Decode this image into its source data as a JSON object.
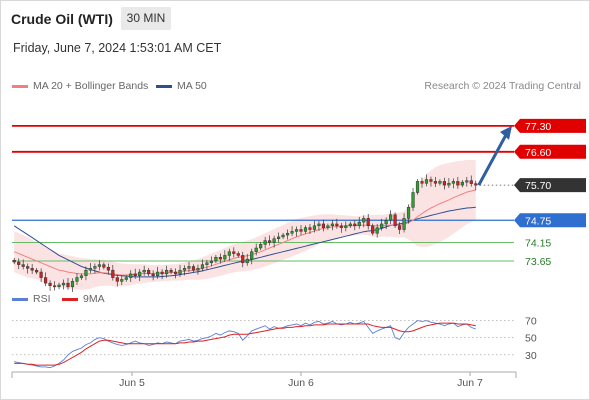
{
  "header": {
    "title": "Crude Oil (WTI)",
    "timeframe": "30 MIN",
    "datetime": "Friday, June 7, 2024 1:53:01 AM CET"
  },
  "legend": {
    "ma20_label": "MA 20 + Bollinger Bands",
    "ma50_label": "MA 50",
    "credit": "Research © 2024 Trading Central"
  },
  "rsi_legend": {
    "rsi_label": "RSI",
    "ma_label": "9MA"
  },
  "colors": {
    "resistance": "#e00000",
    "support_pivot": "#2f6fd0",
    "support": "#66bb66",
    "candle_up": "#2e9e2e",
    "candle_down": "#cc2222",
    "bollinger_fill": "#fbdada",
    "ma20": "#f08080",
    "ma50": "#2f4f8f",
    "rsi": "#5b7fd6",
    "rsi_ma": "#dd2222",
    "arrow": "#2f5fa0",
    "last_price": "#333333"
  },
  "chart_data": [
    {
      "type": "candlestick",
      "x_ticks": [
        "Jun 5",
        "Jun 6",
        "Jun 7"
      ],
      "ylim": [
        73.0,
        78.0
      ],
      "price_levels": [
        {
          "label": "77.30",
          "value": 77.3,
          "kind": "resistance"
        },
        {
          "label": "76.60",
          "value": 76.6,
          "kind": "resistance"
        },
        {
          "label": "75.70",
          "value": 75.7,
          "kind": "last"
        },
        {
          "label": "74.75",
          "value": 74.75,
          "kind": "pivot"
        },
        {
          "label": "74.15",
          "value": 74.15,
          "kind": "support"
        },
        {
          "label": "73.65",
          "value": 73.65,
          "kind": "support"
        }
      ],
      "target_arrow": {
        "from": 75.7,
        "to": 77.3
      },
      "close": [
        73.62,
        73.55,
        73.5,
        73.45,
        73.4,
        73.35,
        73.2,
        73.05,
        72.98,
        72.95,
        73.0,
        73.05,
        72.95,
        73.1,
        73.2,
        73.25,
        73.4,
        73.45,
        73.5,
        73.55,
        73.48,
        73.4,
        73.2,
        73.1,
        73.15,
        73.2,
        73.3,
        73.25,
        73.35,
        73.4,
        73.3,
        73.25,
        73.35,
        73.3,
        73.4,
        73.35,
        73.3,
        73.4,
        73.45,
        73.5,
        73.4,
        73.45,
        73.55,
        73.6,
        73.65,
        73.75,
        73.7,
        73.8,
        73.9,
        73.85,
        73.8,
        73.6,
        73.7,
        73.9,
        74.0,
        74.1,
        74.2,
        74.15,
        74.25,
        74.3,
        74.35,
        74.4,
        74.45,
        74.5,
        74.45,
        74.55,
        74.5,
        74.6,
        74.65,
        74.55,
        74.6,
        74.65,
        74.6,
        74.55,
        74.6,
        74.65,
        74.6,
        74.7,
        74.8,
        74.6,
        74.4,
        74.55,
        74.65,
        74.75,
        74.9,
        74.6,
        74.5,
        74.8,
        75.1,
        75.5,
        75.8,
        75.75,
        75.85,
        75.8,
        75.75,
        75.8,
        75.7,
        75.75,
        75.8,
        75.7,
        75.78,
        75.82,
        75.74,
        75.7
      ],
      "ma20": [
        73.9,
        73.85,
        73.8,
        73.75,
        73.7,
        73.65,
        73.6,
        73.55,
        73.5,
        73.45,
        73.4,
        73.38,
        73.35,
        73.33,
        73.31,
        73.3,
        73.3,
        73.3,
        73.32,
        73.33,
        73.33,
        73.32,
        73.3,
        73.28,
        73.27,
        73.27,
        73.28,
        73.29,
        73.3,
        73.31,
        73.31,
        73.31,
        73.32,
        73.32,
        73.33,
        73.34,
        73.34,
        73.35,
        73.37,
        73.39,
        73.4,
        73.42,
        73.45,
        73.48,
        73.52,
        73.56,
        73.6,
        73.64,
        73.68,
        73.72,
        73.75,
        73.77,
        73.79,
        73.82,
        73.86,
        73.9,
        73.95,
        74.0,
        74.05,
        74.1,
        74.15,
        74.2,
        74.25,
        74.3,
        74.34,
        74.38,
        74.42,
        74.46,
        74.5,
        74.53,
        74.55,
        74.57,
        74.58,
        74.59,
        74.6,
        74.6,
        74.6,
        74.61,
        74.62,
        74.62,
        74.6,
        74.6,
        74.6,
        74.61,
        74.62,
        74.62,
        74.62,
        74.64,
        74.68,
        74.75,
        74.85,
        74.93,
        75.01,
        75.08,
        75.14,
        75.2,
        75.25,
        75.3,
        75.36,
        75.41,
        75.46,
        75.51,
        75.54,
        75.57
      ],
      "ma50": [
        74.6,
        74.52,
        74.44,
        74.36,
        74.28,
        74.2,
        74.12,
        74.04,
        73.96,
        73.88,
        73.8,
        73.74,
        73.68,
        73.62,
        73.56,
        73.5,
        73.46,
        73.42,
        73.38,
        73.35,
        73.32,
        73.3,
        73.28,
        73.26,
        73.25,
        73.24,
        73.23,
        73.22,
        73.22,
        73.22,
        73.22,
        73.22,
        73.22,
        73.23,
        73.24,
        73.25,
        73.26,
        73.28,
        73.3,
        73.32,
        73.34,
        73.36,
        73.38,
        73.41,
        73.44,
        73.47,
        73.5,
        73.53,
        73.56,
        73.59,
        73.62,
        73.64,
        73.66,
        73.69,
        73.72,
        73.75,
        73.78,
        73.81,
        73.84,
        73.87,
        73.9,
        73.93,
        73.96,
        73.99,
        74.02,
        74.05,
        74.08,
        74.11,
        74.14,
        74.17,
        74.2,
        74.23,
        74.26,
        74.29,
        74.32,
        74.35,
        74.38,
        74.41,
        74.44,
        74.46,
        74.47,
        74.5,
        74.53,
        74.57,
        74.61,
        74.63,
        74.65,
        74.68,
        74.71,
        74.75,
        74.79,
        74.82,
        74.85,
        74.88,
        74.91,
        74.94,
        74.97,
        75.0,
        75.02,
        75.04,
        75.06,
        75.08,
        75.09,
        75.1
      ],
      "bb_width": [
        0.55,
        0.55,
        0.55,
        0.55,
        0.52,
        0.5,
        0.5,
        0.5,
        0.48,
        0.46,
        0.45,
        0.45,
        0.45,
        0.45,
        0.44,
        0.43,
        0.42,
        0.4,
        0.38,
        0.36,
        0.35,
        0.34,
        0.33,
        0.32,
        0.31,
        0.3,
        0.28,
        0.27,
        0.26,
        0.25,
        0.24,
        0.23,
        0.23,
        0.22,
        0.22,
        0.22,
        0.22,
        0.23,
        0.24,
        0.25,
        0.26,
        0.28,
        0.3,
        0.32,
        0.33,
        0.34,
        0.35,
        0.36,
        0.37,
        0.38,
        0.39,
        0.4,
        0.41,
        0.42,
        0.43,
        0.44,
        0.45,
        0.46,
        0.46,
        0.47,
        0.47,
        0.48,
        0.48,
        0.48,
        0.47,
        0.46,
        0.44,
        0.42,
        0.4,
        0.38,
        0.36,
        0.34,
        0.32,
        0.3,
        0.28,
        0.27,
        0.26,
        0.25,
        0.26,
        0.27,
        0.3,
        0.3,
        0.3,
        0.3,
        0.32,
        0.33,
        0.34,
        0.35,
        0.45,
        0.6,
        0.8,
        0.9,
        0.98,
        1.02,
        1.04,
        1.04,
        1.02,
        1.0,
        0.97,
        0.94,
        0.9,
        0.87,
        0.84,
        0.8
      ]
    },
    {
      "type": "line",
      "name": "RSI",
      "y_ticks": [
        30,
        50,
        70
      ],
      "ylim": [
        10,
        80
      ],
      "rsi": [
        22,
        21,
        20,
        19,
        18,
        17,
        16,
        16,
        15,
        17,
        20,
        24,
        30,
        34,
        36,
        38,
        42,
        44,
        48,
        50,
        49,
        46,
        44,
        42,
        41,
        42,
        44,
        46,
        44,
        43,
        41,
        42,
        44,
        43,
        45,
        44,
        43,
        46,
        47,
        48,
        46,
        47,
        49,
        50,
        52,
        55,
        53,
        56,
        58,
        57,
        55,
        47,
        52,
        58,
        60,
        62,
        64,
        60,
        63,
        61,
        62,
        64,
        65,
        66,
        64,
        67,
        65,
        68,
        69,
        66,
        67,
        69,
        66,
        65,
        66,
        68,
        66,
        67,
        69,
        62,
        55,
        58,
        60,
        62,
        64,
        50,
        48,
        56,
        62,
        66,
        70,
        69,
        70,
        68,
        67,
        66,
        64,
        66,
        67,
        63,
        65,
        66,
        62,
        60
      ],
      "rsi_ma": [
        20,
        20,
        20,
        19,
        19,
        18,
        18,
        18,
        18,
        18,
        19,
        21,
        24,
        27,
        30,
        33,
        37,
        40,
        43,
        46,
        47,
        47,
        46,
        45,
        44,
        43,
        43,
        43,
        43,
        43,
        43,
        43,
        43,
        43,
        43,
        43,
        43,
        44,
        44,
        45,
        45,
        46,
        46,
        47,
        48,
        49,
        50,
        51,
        53,
        54,
        54,
        54,
        54,
        55,
        56,
        57,
        58,
        59,
        60,
        61,
        61,
        62,
        62,
        63,
        63,
        64,
        64,
        65,
        65,
        65,
        66,
        66,
        66,
        66,
        66,
        66,
        66,
        66,
        66,
        66,
        64,
        63,
        62,
        62,
        62,
        60,
        58,
        57,
        57,
        58,
        60,
        62,
        64,
        65,
        66,
        67,
        67,
        67,
        67,
        66,
        66,
        66,
        65,
        64
      ]
    }
  ]
}
